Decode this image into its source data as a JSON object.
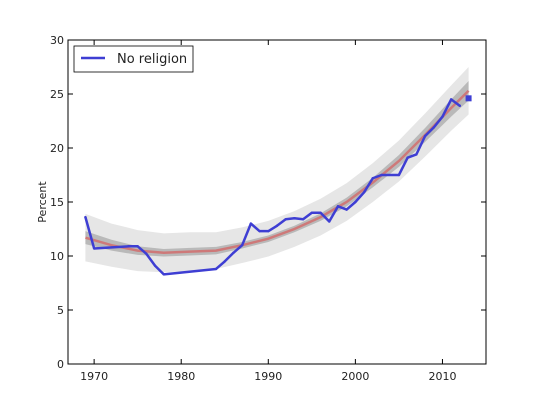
{
  "chart_data": {
    "type": "line",
    "ylabel": "Percent",
    "xlabel": "",
    "xlim": [
      1967,
      2015
    ],
    "ylim": [
      0,
      30
    ],
    "xticks": [
      1970,
      1980,
      1990,
      2000,
      2010
    ],
    "yticks": [
      0,
      5,
      10,
      15,
      20,
      25,
      30
    ],
    "grid": false,
    "legend": {
      "placement": "top-left",
      "entries": [
        "No religion"
      ]
    },
    "series": [
      {
        "name": "No religion",
        "color": "#3e3ed3",
        "x": [
          1969,
          1970,
          1974,
          1975,
          1976,
          1977,
          1978,
          1984,
          1985,
          1986,
          1987,
          1988,
          1989,
          1990,
          1991,
          1992,
          1993,
          1994,
          1995,
          1996,
          1997,
          1998,
          1999,
          2000,
          2001,
          2002,
          2003,
          2005,
          2006,
          2007,
          2008,
          2009,
          2010,
          2011,
          2012
        ],
        "values": [
          13.6,
          10.7,
          10.9,
          10.9,
          10.2,
          9.1,
          8.3,
          8.8,
          9.5,
          10.3,
          11.0,
          13.0,
          12.3,
          12.3,
          12.8,
          13.4,
          13.5,
          13.4,
          14.0,
          14.0,
          13.2,
          14.6,
          14.3,
          15.0,
          15.9,
          17.2,
          17.5,
          17.5,
          19.1,
          19.4,
          21.1,
          21.9,
          22.9,
          24.5,
          23.9
        ]
      }
    ],
    "prediction_point": {
      "x": 2013,
      "y": 24.6,
      "color": "#3e3ed3"
    },
    "fit": {
      "color": "#d07272",
      "x": [
        1969,
        1972,
        1975,
        1978,
        1981,
        1984,
        1987,
        1990,
        1993,
        1996,
        1999,
        2002,
        2005,
        2008,
        2011,
        2013
      ],
      "values": [
        11.7,
        11.0,
        10.5,
        10.3,
        10.4,
        10.5,
        11.0,
        11.6,
        12.5,
        13.6,
        15.0,
        16.8,
        18.8,
        21.2,
        23.7,
        25.3
      ],
      "ci_inner_halfwidth": [
        0.6,
        0.5,
        0.4,
        0.35,
        0.35,
        0.35,
        0.3,
        0.3,
        0.3,
        0.35,
        0.4,
        0.45,
        0.55,
        0.65,
        0.8,
        0.9
      ],
      "ci_outer_halfwidth": [
        2.2,
        2.0,
        1.9,
        1.8,
        1.8,
        1.7,
        1.65,
        1.65,
        1.65,
        1.7,
        1.75,
        1.8,
        1.9,
        2.0,
        2.1,
        2.2
      ]
    }
  }
}
